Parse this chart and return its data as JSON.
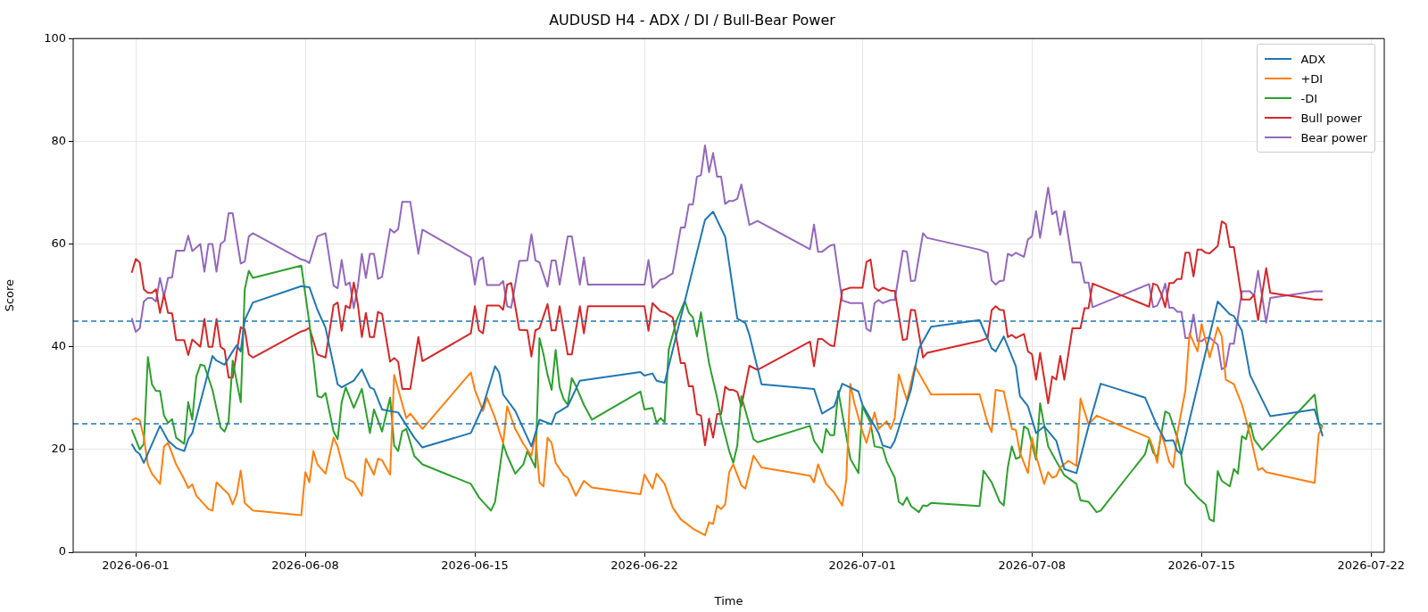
{
  "chart_data": {
    "type": "line",
    "title": "AUDUSD H4 - ADX / DI / Bull-Bear Power",
    "xlabel": "Time",
    "ylabel": "Score",
    "xlim": [
      "2026-05-29T10:00",
      "2026-07-22T13:00"
    ],
    "xticks": [
      "2026-06-01",
      "2026-06-08",
      "2026-06-15",
      "2026-06-22",
      "2026-07-01",
      "2026-07-08",
      "2026-07-15",
      "2026-07-22"
    ],
    "ylim": [
      0,
      100
    ],
    "yticks": [
      0,
      20,
      40,
      60,
      80,
      100
    ],
    "grid": true,
    "legend": "top right",
    "ref_lines": [
      {
        "axis": "y",
        "value": 45,
        "color": "#1f77b4",
        "line_style": "dashed"
      },
      {
        "axis": "y",
        "value": 25,
        "color": "#1f77b4",
        "line_style": "dashed"
      }
    ],
    "series": [
      {
        "name": "ADX",
        "color": "#1f77b4",
        "x": [
          "2026-05-31T20:00",
          "2026-06-01T00:00",
          "2026-06-01T04:00",
          "2026-06-01T08:00",
          "2026-06-02T00:00",
          "2026-06-02T08:00",
          "2026-06-02T16:00",
          "2026-06-03T00:00",
          "2026-06-03T04:00",
          "2026-06-03T08:00",
          "2026-06-04T04:00",
          "2026-06-04T08:00",
          "2026-06-04T16:00",
          "2026-06-05T00:00",
          "2026-06-05T04:00",
          "2026-06-05T08:00",
          "2026-06-05T12:00",
          "2026-06-05T20:00",
          "2026-06-07T20:00",
          "2026-06-08T04:00",
          "2026-06-08T12:00",
          "2026-06-08T20:00",
          "2026-06-09T08:00",
          "2026-06-09T12:00",
          "2026-06-10T00:00",
          "2026-06-10T08:00",
          "2026-06-10T16:00",
          "2026-06-10T20:00",
          "2026-06-11T04:00",
          "2026-06-11T12:00",
          "2026-06-11T20:00",
          "2026-06-12T12:00",
          "2026-06-12T20:00",
          "2026-06-14T20:00",
          "2026-06-15T08:00",
          "2026-06-15T20:00",
          "2026-06-16T00:00",
          "2026-06-16T04:00",
          "2026-06-16T16:00",
          "2026-06-17T08:00",
          "2026-06-17T16:00",
          "2026-06-18T04:00",
          "2026-06-18T08:00",
          "2026-06-18T20:00",
          "2026-06-19T08:00",
          "2026-06-21T20:00",
          "2026-06-22T00:00",
          "2026-06-22T08:00",
          "2026-06-22T12:00",
          "2026-06-22T20:00",
          "2026-06-23T16:00",
          "2026-06-24T12:00",
          "2026-06-24T20:00",
          "2026-06-25T08:00",
          "2026-06-25T20:00",
          "2026-06-26T04:00",
          "2026-06-26T08:00",
          "2026-06-26T20:00",
          "2026-06-29T00:00",
          "2026-06-29T08:00",
          "2026-06-29T20:00",
          "2026-06-30T04:00",
          "2026-06-30T20:00",
          "2026-07-01T00:00",
          "2026-07-01T16:00",
          "2026-07-01T20:00",
          "2026-07-02T04:00",
          "2026-07-02T08:00",
          "2026-07-03T00:00",
          "2026-07-03T08:00",
          "2026-07-03T20:00",
          "2026-07-05T20:00",
          "2026-07-06T08:00",
          "2026-07-06T12:00",
          "2026-07-06T20:00",
          "2026-07-07T08:00",
          "2026-07-07T12:00",
          "2026-07-07T20:00",
          "2026-07-08T04:00",
          "2026-07-08T12:00",
          "2026-07-09T00:00",
          "2026-07-09T08:00",
          "2026-07-09T20:00",
          "2026-07-10T08:00",
          "2026-07-10T20:00",
          "2026-07-12T16:00",
          "2026-07-13T04:00",
          "2026-07-13T12:00",
          "2026-07-13T20:00",
          "2026-07-14T00:00",
          "2026-07-14T04:00",
          "2026-07-15T16:00",
          "2026-07-16T04:00",
          "2026-07-16T08:00",
          "2026-07-16T16:00",
          "2026-07-17T00:00",
          "2026-07-17T20:00",
          "2026-07-19T16:00",
          "2026-07-20T00:00"
        ],
        "values": [
          21.1,
          19.7,
          19.1,
          17.4,
          24.6,
          21.7,
          20.3,
          19.7,
          22.0,
          23.2,
          38.2,
          37.3,
          36.5,
          39.1,
          40.3,
          39.1,
          45.2,
          48.6,
          51.8,
          51.6,
          47.2,
          43.7,
          32.7,
          32.1,
          33.4,
          35.6,
          32.1,
          31.7,
          27.8,
          27.5,
          27.2,
          22.3,
          20.4,
          23.2,
          28.4,
          36.2,
          35.0,
          30.7,
          27.5,
          20.6,
          25.8,
          24.9,
          27.0,
          28.4,
          33.4,
          35.1,
          34.4,
          34.8,
          33.4,
          33.0,
          48.9,
          64.7,
          66.3,
          61.4,
          45.5,
          44.6,
          42.3,
          32.7,
          31.8,
          27.0,
          28.4,
          32.8,
          31.3,
          28.7,
          23.2,
          20.8,
          20.3,
          21.7,
          31.6,
          39.7,
          43.9,
          45.2,
          39.7,
          39.1,
          42.0,
          36.2,
          30.4,
          28.4,
          23.2,
          24.5,
          21.7,
          16.2,
          15.4,
          24.5,
          32.8,
          30.1,
          24.6,
          21.7,
          21.8,
          19.7,
          19.1,
          48.8,
          46.3,
          46.0,
          43.1,
          34.5,
          26.5,
          27.8,
          22.6
        ]
      },
      {
        "name": "+DI",
        "color": "#ff7f0e",
        "x": [
          "2026-05-31T20:00",
          "2026-06-01T00:00",
          "2026-06-01T04:00",
          "2026-06-01T08:00",
          "2026-06-01T12:00",
          "2026-06-01T16:00",
          "2026-06-02T00:00",
          "2026-06-02T04:00",
          "2026-06-02T08:00",
          "2026-06-02T16:00",
          "2026-06-03T00:00",
          "2026-06-03T04:00",
          "2026-06-03T08:00",
          "2026-06-03T12:00",
          "2026-06-04T00:00",
          "2026-06-04T04:00",
          "2026-06-04T08:00",
          "2026-06-04T20:00",
          "2026-06-05T00:00",
          "2026-06-05T04:00",
          "2026-06-05T08:00",
          "2026-06-05T12:00",
          "2026-06-05T20:00",
          "2026-06-07T20:00",
          "2026-06-08T00:00",
          "2026-06-08T04:00",
          "2026-06-08T08:00",
          "2026-06-08T12:00",
          "2026-06-08T20:00",
          "2026-06-09T04:00",
          "2026-06-09T08:00",
          "2026-06-09T16:00",
          "2026-06-10T00:00",
          "2026-06-10T08:00",
          "2026-06-10T12:00",
          "2026-06-10T20:00",
          "2026-06-11T00:00",
          "2026-06-11T04:00",
          "2026-06-11T12:00",
          "2026-06-11T16:00",
          "2026-06-12T04:00",
          "2026-06-12T08:00",
          "2026-06-12T20:00",
          "2026-06-14T20:00",
          "2026-06-15T00:00",
          "2026-06-15T08:00",
          "2026-06-15T12:00",
          "2026-06-15T20:00",
          "2026-06-16T04:00",
          "2026-06-16T08:00",
          "2026-06-16T16:00",
          "2026-06-17T00:00",
          "2026-06-17T08:00",
          "2026-06-17T12:00",
          "2026-06-17T16:00",
          "2026-06-17T20:00",
          "2026-06-18T00:00",
          "2026-06-18T04:00",
          "2026-06-18T08:00",
          "2026-06-18T16:00",
          "2026-06-18T20:00",
          "2026-06-19T04:00",
          "2026-06-19T12:00",
          "2026-06-19T20:00",
          "2026-06-21T20:00",
          "2026-06-22T00:00",
          "2026-06-22T08:00",
          "2026-06-22T12:00",
          "2026-06-22T20:00",
          "2026-06-23T04:00",
          "2026-06-23T12:00",
          "2026-06-24T00:00",
          "2026-06-24T12:00",
          "2026-06-24T16:00",
          "2026-06-24T20:00",
          "2026-06-25T00:00",
          "2026-06-25T04:00",
          "2026-06-25T08:00",
          "2026-06-25T12:00",
          "2026-06-25T16:00",
          "2026-06-26T00:00",
          "2026-06-26T04:00",
          "2026-06-26T12:00",
          "2026-06-26T20:00",
          "2026-06-28T20:00",
          "2026-06-29T00:00",
          "2026-06-29T04:00",
          "2026-06-29T12:00",
          "2026-06-29T20:00",
          "2026-06-30T04:00",
          "2026-06-30T08:00",
          "2026-06-30T12:00",
          "2026-06-30T16:00",
          "2026-07-01T00:00",
          "2026-07-01T04:00",
          "2026-07-01T12:00",
          "2026-07-01T16:00",
          "2026-07-02T00:00",
          "2026-07-02T04:00",
          "2026-07-02T08:00",
          "2026-07-02T12:00",
          "2026-07-02T20:00",
          "2026-07-03T04:00",
          "2026-07-03T20:00",
          "2026-07-05T20:00",
          "2026-07-06T04:00",
          "2026-07-06T08:00",
          "2026-07-06T12:00",
          "2026-07-06T20:00",
          "2026-07-07T04:00",
          "2026-07-07T08:00",
          "2026-07-07T12:00",
          "2026-07-07T20:00",
          "2026-07-08T00:00",
          "2026-07-08T04:00",
          "2026-07-08T12:00",
          "2026-07-08T16:00",
          "2026-07-08T20:00",
          "2026-07-09T00:00",
          "2026-07-09T04:00",
          "2026-07-09T12:00",
          "2026-07-09T20:00",
          "2026-07-10T00:00",
          "2026-07-10T08:00",
          "2026-07-10T16:00",
          "2026-07-12T20:00",
          "2026-07-13T00:00",
          "2026-07-13T04:00",
          "2026-07-13T08:00",
          "2026-07-13T16:00",
          "2026-07-13T20:00",
          "2026-07-14T00:00",
          "2026-07-14T08:00",
          "2026-07-14T12:00",
          "2026-07-14T20:00",
          "2026-07-15T00:00",
          "2026-07-15T08:00",
          "2026-07-15T16:00",
          "2026-07-15T20:00",
          "2026-07-16T00:00",
          "2026-07-16T08:00",
          "2026-07-16T16:00",
          "2026-07-17T00:00",
          "2026-07-17T08:00",
          "2026-07-17T12:00",
          "2026-07-17T16:00",
          "2026-07-19T16:00",
          "2026-07-19T20:00",
          "2026-07-20T00:00"
        ],
        "values": [
          25.7,
          26.1,
          25.7,
          22.3,
          17.1,
          15.3,
          13.3,
          20.6,
          21.3,
          17.1,
          14.2,
          12.5,
          13.2,
          11.0,
          8.4,
          8.1,
          13.6,
          11.3,
          9.3,
          11.3,
          15.9,
          9.6,
          8.1,
          7.2,
          15.6,
          13.6,
          19.7,
          17.1,
          15.3,
          22.3,
          20.6,
          14.5,
          13.6,
          11.0,
          18.2,
          15.1,
          18.2,
          17.9,
          15.1,
          34.5,
          26.1,
          27.0,
          24.0,
          35.0,
          31.6,
          27.5,
          30.1,
          26.1,
          21.2,
          28.4,
          24.0,
          21.1,
          18.8,
          23.0,
          13.6,
          12.8,
          22.3,
          21.3,
          17.4,
          15.0,
          14.5,
          11.0,
          13.9,
          12.6,
          11.3,
          15.1,
          12.4,
          15.3,
          13.3,
          8.7,
          6.4,
          4.6,
          3.3,
          5.8,
          5.5,
          9.1,
          8.4,
          9.3,
          15.6,
          17.1,
          13.0,
          12.4,
          18.8,
          16.5,
          14.9,
          13.6,
          17.1,
          13.3,
          11.6,
          9.1,
          14.2,
          32.8,
          29.0,
          23.5,
          21.3,
          27.2,
          24.0,
          25.5,
          24.0,
          26.1,
          34.6,
          29.6,
          36.2,
          30.7,
          30.8,
          25.2,
          23.4,
          31.6,
          31.3,
          24.0,
          23.8,
          19.4,
          15.4,
          22.3,
          18.8,
          13.3,
          15.6,
          14.5,
          14.8,
          16.5,
          17.8,
          16.8,
          29.9,
          24.9,
          26.6,
          22.3,
          20.3,
          17.4,
          23.5,
          17.6,
          16.5,
          23.2,
          31.6,
          42.6,
          39.1,
          44.4,
          37.9,
          43.8,
          42.0,
          33.6,
          32.7,
          28.7,
          22.9,
          16.0,
          16.4,
          15.6,
          13.5,
          22.9,
          24.6
        ]
      },
      {
        "name": "-DI",
        "color": "#2ca02c",
        "x": [
          "2026-05-31T20:00",
          "2026-06-01T04:00",
          "2026-06-01T08:00",
          "2026-06-01T12:00",
          "2026-06-01T16:00",
          "2026-06-01T20:00",
          "2026-06-02T00:00",
          "2026-06-02T04:00",
          "2026-06-02T08:00",
          "2026-06-02T12:00",
          "2026-06-02T16:00",
          "2026-06-03T00:00",
          "2026-06-03T04:00",
          "2026-06-03T08:00",
          "2026-06-03T12:00",
          "2026-06-03T16:00",
          "2026-06-03T20:00",
          "2026-06-04T04:00",
          "2026-06-04T12:00",
          "2026-06-04T16:00",
          "2026-06-04T20:00",
          "2026-06-05T00:00",
          "2026-06-05T08:00",
          "2026-06-05T12:00",
          "2026-06-05T16:00",
          "2026-06-05T20:00",
          "2026-06-07T20:00",
          "2026-06-08T04:00",
          "2026-06-08T12:00",
          "2026-06-08T16:00",
          "2026-06-08T20:00",
          "2026-06-09T04:00",
          "2026-06-09T08:00",
          "2026-06-09T12:00",
          "2026-06-09T16:00",
          "2026-06-10T00:00",
          "2026-06-10T08:00",
          "2026-06-10T16:00",
          "2026-06-10T20:00",
          "2026-06-11T04:00",
          "2026-06-11T12:00",
          "2026-06-11T16:00",
          "2026-06-11T20:00",
          "2026-06-12T00:00",
          "2026-06-12T04:00",
          "2026-06-12T12:00",
          "2026-06-12T20:00",
          "2026-06-14T20:00",
          "2026-06-15T04:00",
          "2026-06-15T08:00",
          "2026-06-15T16:00",
          "2026-06-15T20:00",
          "2026-06-16T04:00",
          "2026-06-16T08:00",
          "2026-06-16T16:00",
          "2026-06-17T00:00",
          "2026-06-17T04:00",
          "2026-06-17T12:00",
          "2026-06-17T16:00",
          "2026-06-17T20:00",
          "2026-06-18T00:00",
          "2026-06-18T04:00",
          "2026-06-18T08:00",
          "2026-06-18T12:00",
          "2026-06-18T16:00",
          "2026-06-18T20:00",
          "2026-06-19T00:00",
          "2026-06-19T04:00",
          "2026-06-19T12:00",
          "2026-06-19T20:00",
          "2026-06-21T20:00",
          "2026-06-22T00:00",
          "2026-06-22T08:00",
          "2026-06-22T12:00",
          "2026-06-22T16:00",
          "2026-06-22T20:00",
          "2026-06-23T00:00",
          "2026-06-23T08:00",
          "2026-06-23T16:00",
          "2026-06-23T20:00",
          "2026-06-24T00:00",
          "2026-06-24T04:00",
          "2026-06-24T08:00",
          "2026-06-24T16:00",
          "2026-06-25T00:00",
          "2026-06-25T04:00",
          "2026-06-25T12:00",
          "2026-06-25T16:00",
          "2026-06-25T20:00",
          "2026-06-26T00:00",
          "2026-06-26T12:00",
          "2026-06-26T16:00",
          "2026-06-28T20:00",
          "2026-06-29T00:00",
          "2026-06-29T08:00",
          "2026-06-29T12:00",
          "2026-06-29T16:00",
          "2026-06-29T20:00",
          "2026-06-30T00:00",
          "2026-06-30T12:00",
          "2026-06-30T20:00",
          "2026-07-01T00:00",
          "2026-07-01T08:00",
          "2026-07-01T12:00",
          "2026-07-01T20:00",
          "2026-07-02T00:00",
          "2026-07-02T08:00",
          "2026-07-02T12:00",
          "2026-07-02T16:00",
          "2026-07-02T20:00",
          "2026-07-03T00:00",
          "2026-07-03T08:00",
          "2026-07-03T12:00",
          "2026-07-03T16:00",
          "2026-07-03T20:00",
          "2026-07-05T20:00",
          "2026-07-06T00:00",
          "2026-07-06T08:00",
          "2026-07-06T16:00",
          "2026-07-06T20:00",
          "2026-07-07T00:00",
          "2026-07-07T04:00",
          "2026-07-07T08:00",
          "2026-07-07T12:00",
          "2026-07-07T16:00",
          "2026-07-07T20:00",
          "2026-07-08T04:00",
          "2026-07-08T08:00",
          "2026-07-08T16:00",
          "2026-07-09T00:00",
          "2026-07-09T08:00",
          "2026-07-09T20:00",
          "2026-07-10T00:00",
          "2026-07-10T08:00",
          "2026-07-10T16:00",
          "2026-07-10T20:00",
          "2026-07-12T16:00",
          "2026-07-12T20:00",
          "2026-07-13T00:00",
          "2026-07-13T04:00",
          "2026-07-13T12:00",
          "2026-07-13T16:00",
          "2026-07-14T00:00",
          "2026-07-14T04:00",
          "2026-07-14T08:00",
          "2026-07-14T16:00",
          "2026-07-14T20:00",
          "2026-07-15T04:00",
          "2026-07-15T08:00",
          "2026-07-15T12:00",
          "2026-07-15T16:00",
          "2026-07-15T20:00",
          "2026-07-16T04:00",
          "2026-07-16T08:00",
          "2026-07-16T12:00",
          "2026-07-16T16:00",
          "2026-07-16T20:00",
          "2026-07-17T00:00",
          "2026-07-17T04:00",
          "2026-07-17T12:00",
          "2026-07-19T16:00",
          "2026-07-19T20:00",
          "2026-07-20T00:00"
        ],
        "values": [
          23.9,
          20.0,
          21.1,
          38.0,
          32.7,
          31.4,
          31.4,
          26.6,
          25.2,
          25.9,
          22.3,
          21.1,
          29.2,
          25.8,
          34.2,
          36.5,
          36.3,
          31.6,
          24.3,
          23.5,
          25.5,
          37.3,
          29.2,
          51.2,
          54.8,
          53.4,
          55.8,
          44.6,
          30.4,
          30.1,
          31.0,
          23.5,
          22.0,
          29.2,
          32.1,
          28.1,
          31.8,
          23.2,
          27.8,
          23.5,
          30.1,
          20.8,
          19.7,
          23.5,
          24.0,
          18.7,
          17.1,
          13.3,
          10.7,
          9.8,
          8.1,
          9.8,
          21.1,
          18.8,
          15.3,
          17.1,
          19.7,
          16.5,
          41.7,
          38.5,
          34.5,
          31.6,
          39.4,
          32.1,
          29.8,
          28.7,
          33.9,
          32.4,
          28.7,
          25.8,
          31.3,
          27.8,
          28.1,
          25.2,
          26.1,
          25.3,
          39.4,
          45.2,
          48.9,
          46.6,
          45.7,
          42.0,
          46.7,
          36.8,
          30.1,
          25.8,
          19.7,
          17.4,
          20.8,
          30.4,
          22.0,
          21.4,
          24.6,
          21.7,
          19.4,
          24.0,
          22.8,
          22.8,
          31.4,
          18.2,
          15.4,
          28.4,
          25.2,
          20.6,
          20.3,
          17.7,
          14.5,
          9.8,
          9.2,
          10.7,
          9.0,
          7.8,
          9.1,
          9.0,
          9.6,
          9.0,
          15.9,
          13.6,
          9.8,
          9.1,
          16.5,
          20.6,
          18.2,
          18.5,
          24.5,
          24.0,
          18.0,
          29.0,
          20.6,
          17.7,
          15.0,
          13.3,
          10.1,
          9.8,
          7.8,
          8.1,
          19.1,
          22.0,
          19.4,
          18.5,
          27.4,
          27.0,
          22.3,
          18.8,
          13.3,
          11.6,
          10.7,
          9.3,
          6.4,
          6.0,
          15.8,
          13.9,
          12.8,
          16.2,
          15.3,
          22.6,
          22.0,
          25.2,
          22.0,
          19.9,
          30.7,
          25.2,
          24.5
        ]
      },
      {
        "name": "Bull power",
        "color": "#d62728",
        "x": [
          "2026-05-31T20:00",
          "2026-06-01T00:00",
          "2026-06-01T04:00",
          "2026-06-01T08:00",
          "2026-06-01T12:00",
          "2026-06-01T16:00",
          "2026-06-01T20:00",
          "2026-06-02T00:00",
          "2026-06-02T04:00",
          "2026-06-02T08:00",
          "2026-06-02T12:00",
          "2026-06-02T16:00",
          "2026-06-03T00:00",
          "2026-06-03T04:00",
          "2026-06-03T08:00",
          "2026-06-03T16:00",
          "2026-06-03T20:00",
          "2026-06-04T00:00",
          "2026-06-04T04:00",
          "2026-06-04T08:00",
          "2026-06-04T12:00",
          "2026-06-04T16:00",
          "2026-06-04T20:00",
          "2026-06-05T00:00",
          "2026-06-05T08:00",
          "2026-06-05T12:00",
          "2026-06-05T16:00",
          "2026-06-05T20:00",
          "2026-06-07T20:00",
          "2026-06-08T00:00",
          "2026-06-08T04:00",
          "2026-06-08T12:00",
          "2026-06-08T20:00",
          "2026-06-09T04:00",
          "2026-06-09T08:00",
          "2026-06-09T12:00",
          "2026-06-09T16:00",
          "2026-06-09T20:00",
          "2026-06-10T00:00",
          "2026-06-10T04:00",
          "2026-06-10T08:00",
          "2026-06-10T12:00",
          "2026-06-10T16:00",
          "2026-06-10T20:00",
          "2026-06-11T00:00",
          "2026-06-11T04:00",
          "2026-06-11T12:00",
          "2026-06-11T16:00",
          "2026-06-11T20:00",
          "2026-06-12T00:00",
          "2026-06-12T08:00",
          "2026-06-12T16:00",
          "2026-06-12T20:00",
          "2026-06-14T20:00",
          "2026-06-15T00:00",
          "2026-06-15T04:00",
          "2026-06-15T08:00",
          "2026-06-15T12:00",
          "2026-06-16T00:00",
          "2026-06-16T04:00",
          "2026-06-16T08:00",
          "2026-06-16T12:00",
          "2026-06-16T20:00",
          "2026-06-17T04:00",
          "2026-06-17T08:00",
          "2026-06-17T12:00",
          "2026-06-17T16:00",
          "2026-06-18T00:00",
          "2026-06-18T04:00",
          "2026-06-18T08:00",
          "2026-06-18T12:00",
          "2026-06-18T20:00",
          "2026-06-19T00:00",
          "2026-06-19T08:00",
          "2026-06-19T12:00",
          "2026-06-19T16:00",
          "2026-06-22T00:00",
          "2026-06-22T04:00",
          "2026-06-22T08:00",
          "2026-06-22T16:00",
          "2026-06-22T20:00",
          "2026-06-23T04:00",
          "2026-06-23T12:00",
          "2026-06-23T16:00",
          "2026-06-23T20:00",
          "2026-06-24T00:00",
          "2026-06-24T04:00",
          "2026-06-24T08:00",
          "2026-06-24T12:00",
          "2026-06-24T16:00",
          "2026-06-24T20:00",
          "2026-06-25T00:00",
          "2026-06-25T04:00",
          "2026-06-25T08:00",
          "2026-06-25T12:00",
          "2026-06-25T16:00",
          "2026-06-25T20:00",
          "2026-06-26T00:00",
          "2026-06-26T08:00",
          "2026-06-26T16:00",
          "2026-06-28T20:00",
          "2026-06-29T00:00",
          "2026-06-29T04:00",
          "2026-06-29T08:00",
          "2026-06-29T16:00",
          "2026-06-29T20:00",
          "2026-06-30T04:00",
          "2026-06-30T12:00",
          "2026-07-01T00:00",
          "2026-07-01T04:00",
          "2026-07-01T08:00",
          "2026-07-01T12:00",
          "2026-07-01T16:00",
          "2026-07-01T20:00",
          "2026-07-02T04:00",
          "2026-07-02T08:00",
          "2026-07-02T16:00",
          "2026-07-02T20:00",
          "2026-07-03T00:00",
          "2026-07-03T04:00",
          "2026-07-03T12:00",
          "2026-07-03T16:00",
          "2026-07-05T20:00",
          "2026-07-06T04:00",
          "2026-07-06T08:00",
          "2026-07-06T12:00",
          "2026-07-06T16:00",
          "2026-07-06T20:00",
          "2026-07-07T00:00",
          "2026-07-07T04:00",
          "2026-07-07T08:00",
          "2026-07-07T16:00",
          "2026-07-07T20:00",
          "2026-07-08T00:00",
          "2026-07-08T04:00",
          "2026-07-08T08:00",
          "2026-07-08T16:00",
          "2026-07-08T20:00",
          "2026-07-09T00:00",
          "2026-07-09T04:00",
          "2026-07-09T08:00",
          "2026-07-09T16:00",
          "2026-07-10T00:00",
          "2026-07-10T04:00",
          "2026-07-10T08:00",
          "2026-07-10T12:00",
          "2026-07-12T20:00",
          "2026-07-13T00:00",
          "2026-07-13T04:00",
          "2026-07-13T08:00",
          "2026-07-13T12:00",
          "2026-07-13T16:00",
          "2026-07-13T20:00",
          "2026-07-14T00:00",
          "2026-07-14T04:00",
          "2026-07-14T08:00",
          "2026-07-14T12:00",
          "2026-07-14T16:00",
          "2026-07-14T20:00",
          "2026-07-15T00:00",
          "2026-07-15T04:00",
          "2026-07-15T08:00",
          "2026-07-15T16:00",
          "2026-07-15T20:00",
          "2026-07-16T00:00",
          "2026-07-16T04:00",
          "2026-07-16T08:00",
          "2026-07-16T16:00",
          "2026-07-17T00:00",
          "2026-07-17T04:00",
          "2026-07-17T08:00",
          "2026-07-17T16:00",
          "2026-07-17T20:00",
          "2026-07-19T16:00",
          "2026-07-20T00:00"
        ],
        "values": [
          54.4,
          57.1,
          56.4,
          51.2,
          50.5,
          50.5,
          51.2,
          46.6,
          50.2,
          46.6,
          46.5,
          41.3,
          41.3,
          38.4,
          41.4,
          40.0,
          45.4,
          40.0,
          40.0,
          45.4,
          40.0,
          39.4,
          34.0,
          34.0,
          43.8,
          43.4,
          38.5,
          37.9,
          43.0,
          43.2,
          43.7,
          38.5,
          37.9,
          48.1,
          48.6,
          43.1,
          48.0,
          47.5,
          52.5,
          48.3,
          41.9,
          46.6,
          41.9,
          41.9,
          46.8,
          46.4,
          37.1,
          37.8,
          37.1,
          31.8,
          31.8,
          41.9,
          37.2,
          42.6,
          47.9,
          43.2,
          42.6,
          48.0,
          48.0,
          47.2,
          52.1,
          52.4,
          43.3,
          43.2,
          38.1,
          43.2,
          43.6,
          48.3,
          43.2,
          43.2,
          47.9,
          38.5,
          38.5,
          47.9,
          42.6,
          47.9,
          47.9,
          43.1,
          48.5,
          46.9,
          46.7,
          45.7,
          36.8,
          36.8,
          32.3,
          32.3,
          26.9,
          26.6,
          20.8,
          26.0,
          22.3,
          26.9,
          26.9,
          32.2,
          31.6,
          31.6,
          31.2,
          28.4,
          36.3,
          35.5,
          41.0,
          36.2,
          41.5,
          41.5,
          40.3,
          40.1,
          51.0,
          51.5,
          51.5,
          56.5,
          57.0,
          51.5,
          50.9,
          51.5,
          50.9,
          50.9,
          41.3,
          41.5,
          47.2,
          47.1,
          37.9,
          38.8,
          41.1,
          41.7,
          47.1,
          47.9,
          47.2,
          47.1,
          41.9,
          42.3,
          41.7,
          42.5,
          39.1,
          38.5,
          33.6,
          38.8,
          29.0,
          34.2,
          33.6,
          38.2,
          33.6,
          43.6,
          43.6,
          47.5,
          47.5,
          52.3,
          47.8,
          52.3,
          52.0,
          50.3,
          47.7,
          52.4,
          52.4,
          53.2,
          53.2,
          58.3,
          58.3,
          53.7,
          58.9,
          58.9,
          58.3,
          58.2,
          59.6,
          64.4,
          63.9,
          59.4,
          59.4,
          49.2,
          49.2,
          50.1,
          45.2,
          55.3,
          50.5,
          49.2,
          49.2
        ]
      },
      {
        "name": "Bear power",
        "color": "#9467bd",
        "x": [
          "2026-05-31T20:00",
          "2026-06-01T00:00",
          "2026-06-01T04:00",
          "2026-06-01T08:00",
          "2026-06-01T12:00",
          "2026-06-01T16:00",
          "2026-06-01T20:00",
          "2026-06-02T00:00",
          "2026-06-02T04:00",
          "2026-06-02T08:00",
          "2026-06-02T12:00",
          "2026-06-02T16:00",
          "2026-06-03T00:00",
          "2026-06-03T04:00",
          "2026-06-03T08:00",
          "2026-06-03T16:00",
          "2026-06-03T20:00",
          "2026-06-04T00:00",
          "2026-06-04T04:00",
          "2026-06-04T08:00",
          "2026-06-04T12:00",
          "2026-06-04T16:00",
          "2026-06-04T20:00",
          "2026-06-05T00:00",
          "2026-06-05T08:00",
          "2026-06-05T12:00",
          "2026-06-05T16:00",
          "2026-06-05T20:00",
          "2026-06-07T20:00",
          "2026-06-08T00:00",
          "2026-06-08T04:00",
          "2026-06-08T12:00",
          "2026-06-08T20:00",
          "2026-06-09T04:00",
          "2026-06-09T08:00",
          "2026-06-09T12:00",
          "2026-06-09T16:00",
          "2026-06-09T20:00",
          "2026-06-10T00:00",
          "2026-06-10T04:00",
          "2026-06-10T08:00",
          "2026-06-10T12:00",
          "2026-06-10T16:00",
          "2026-06-10T20:00",
          "2026-06-11T00:00",
          "2026-06-11T04:00",
          "2026-06-11T12:00",
          "2026-06-11T16:00",
          "2026-06-11T20:00",
          "2026-06-12T00:00",
          "2026-06-12T08:00",
          "2026-06-12T16:00",
          "2026-06-12T20:00",
          "2026-06-14T20:00",
          "2026-06-15T00:00",
          "2026-06-15T04:00",
          "2026-06-15T08:00",
          "2026-06-15T12:00",
          "2026-06-16T00:00",
          "2026-06-16T04:00",
          "2026-06-16T08:00",
          "2026-06-16T12:00",
          "2026-06-16T20:00",
          "2026-06-17T04:00",
          "2026-06-17T08:00",
          "2026-06-17T12:00",
          "2026-06-17T16:00",
          "2026-06-18T00:00",
          "2026-06-18T04:00",
          "2026-06-18T08:00",
          "2026-06-18T12:00",
          "2026-06-18T20:00",
          "2026-06-19T00:00",
          "2026-06-19T08:00",
          "2026-06-19T12:00",
          "2026-06-19T16:00",
          "2026-06-22T00:00",
          "2026-06-22T04:00",
          "2026-06-22T08:00",
          "2026-06-22T16:00",
          "2026-06-22T20:00",
          "2026-06-23T04:00",
          "2026-06-23T12:00",
          "2026-06-23T16:00",
          "2026-06-23T20:00",
          "2026-06-24T00:00",
          "2026-06-24T04:00",
          "2026-06-24T08:00",
          "2026-06-24T12:00",
          "2026-06-24T16:00",
          "2026-06-24T20:00",
          "2026-06-25T00:00",
          "2026-06-25T04:00",
          "2026-06-25T08:00",
          "2026-06-25T12:00",
          "2026-06-25T16:00",
          "2026-06-25T20:00",
          "2026-06-26T00:00",
          "2026-06-26T08:00",
          "2026-06-26T16:00",
          "2026-06-28T20:00",
          "2026-06-29T00:00",
          "2026-06-29T04:00",
          "2026-06-29T08:00",
          "2026-06-29T16:00",
          "2026-06-29T20:00",
          "2026-06-30T04:00",
          "2026-06-30T12:00",
          "2026-07-01T00:00",
          "2026-07-01T04:00",
          "2026-07-01T08:00",
          "2026-07-01T12:00",
          "2026-07-01T16:00",
          "2026-07-01T20:00",
          "2026-07-02T04:00",
          "2026-07-02T08:00",
          "2026-07-02T16:00",
          "2026-07-02T20:00",
          "2026-07-03T00:00",
          "2026-07-03T04:00",
          "2026-07-03T12:00",
          "2026-07-03T16:00",
          "2026-07-05T20:00",
          "2026-07-06T04:00",
          "2026-07-06T08:00",
          "2026-07-06T12:00",
          "2026-07-06T16:00",
          "2026-07-06T20:00",
          "2026-07-07T00:00",
          "2026-07-07T04:00",
          "2026-07-07T08:00",
          "2026-07-07T16:00",
          "2026-07-07T20:00",
          "2026-07-08T00:00",
          "2026-07-08T04:00",
          "2026-07-08T08:00",
          "2026-07-08T16:00",
          "2026-07-08T20:00",
          "2026-07-09T00:00",
          "2026-07-09T04:00",
          "2026-07-09T08:00",
          "2026-07-09T16:00",
          "2026-07-10T00:00",
          "2026-07-10T04:00",
          "2026-07-10T08:00",
          "2026-07-10T12:00",
          "2026-07-12T20:00",
          "2026-07-13T00:00",
          "2026-07-13T04:00",
          "2026-07-13T08:00",
          "2026-07-13T12:00",
          "2026-07-13T16:00",
          "2026-07-13T20:00",
          "2026-07-14T00:00",
          "2026-07-14T04:00",
          "2026-07-14T08:00",
          "2026-07-14T12:00",
          "2026-07-14T16:00",
          "2026-07-14T20:00",
          "2026-07-15T00:00",
          "2026-07-15T04:00",
          "2026-07-15T08:00",
          "2026-07-15T16:00",
          "2026-07-15T20:00",
          "2026-07-16T00:00",
          "2026-07-16T04:00",
          "2026-07-16T08:00",
          "2026-07-16T16:00",
          "2026-07-17T00:00",
          "2026-07-17T04:00",
          "2026-07-17T08:00",
          "2026-07-17T16:00",
          "2026-07-17T20:00",
          "2026-07-19T16:00",
          "2026-07-20T00:00"
        ],
        "values": [
          45.6,
          42.9,
          43.6,
          48.8,
          49.5,
          49.5,
          48.8,
          53.4,
          49.8,
          53.4,
          53.5,
          58.7,
          58.7,
          61.6,
          58.6,
          60.0,
          54.6,
          60.0,
          60.0,
          54.6,
          60.0,
          60.6,
          66.0,
          66.0,
          56.2,
          56.6,
          61.5,
          62.1,
          57.0,
          56.8,
          56.3,
          61.5,
          62.1,
          51.9,
          51.4,
          56.9,
          52.0,
          52.5,
          47.5,
          51.7,
          58.1,
          53.4,
          58.1,
          58.1,
          53.2,
          53.6,
          62.9,
          62.2,
          62.9,
          68.2,
          68.2,
          58.1,
          62.8,
          57.4,
          52.1,
          56.8,
          57.4,
          52.0,
          52.0,
          52.8,
          47.9,
          47.6,
          56.7,
          56.8,
          61.9,
          56.8,
          56.4,
          51.7,
          56.8,
          56.8,
          52.1,
          61.5,
          61.5,
          52.1,
          57.4,
          52.1,
          52.1,
          56.9,
          51.5,
          53.1,
          53.3,
          54.3,
          63.2,
          63.2,
          67.7,
          67.7,
          73.1,
          73.4,
          79.2,
          74.0,
          77.7,
          73.1,
          73.1,
          67.8,
          68.4,
          68.4,
          68.8,
          71.6,
          63.7,
          64.5,
          59.0,
          63.8,
          58.5,
          58.5,
          59.7,
          59.9,
          49.0,
          48.5,
          48.5,
          43.5,
          43.0,
          48.5,
          49.1,
          48.5,
          49.1,
          49.1,
          58.7,
          58.5,
          52.8,
          52.9,
          62.1,
          61.2,
          58.9,
          58.3,
          52.9,
          52.1,
          52.8,
          52.9,
          58.1,
          57.7,
          58.3,
          57.5,
          60.9,
          61.5,
          66.4,
          61.2,
          71.0,
          65.8,
          66.4,
          61.8,
          66.4,
          56.4,
          56.4,
          52.5,
          52.5,
          47.7,
          52.2,
          47.7,
          48.0,
          49.7,
          52.3,
          47.6,
          47.6,
          46.8,
          46.8,
          41.7,
          41.7,
          46.3,
          41.1,
          41.1,
          41.7,
          41.8,
          40.4,
          35.6,
          36.1,
          40.6,
          40.6,
          50.8,
          50.8,
          49.9,
          54.8,
          44.7,
          49.5,
          50.8,
          50.8
        ]
      }
    ]
  }
}
